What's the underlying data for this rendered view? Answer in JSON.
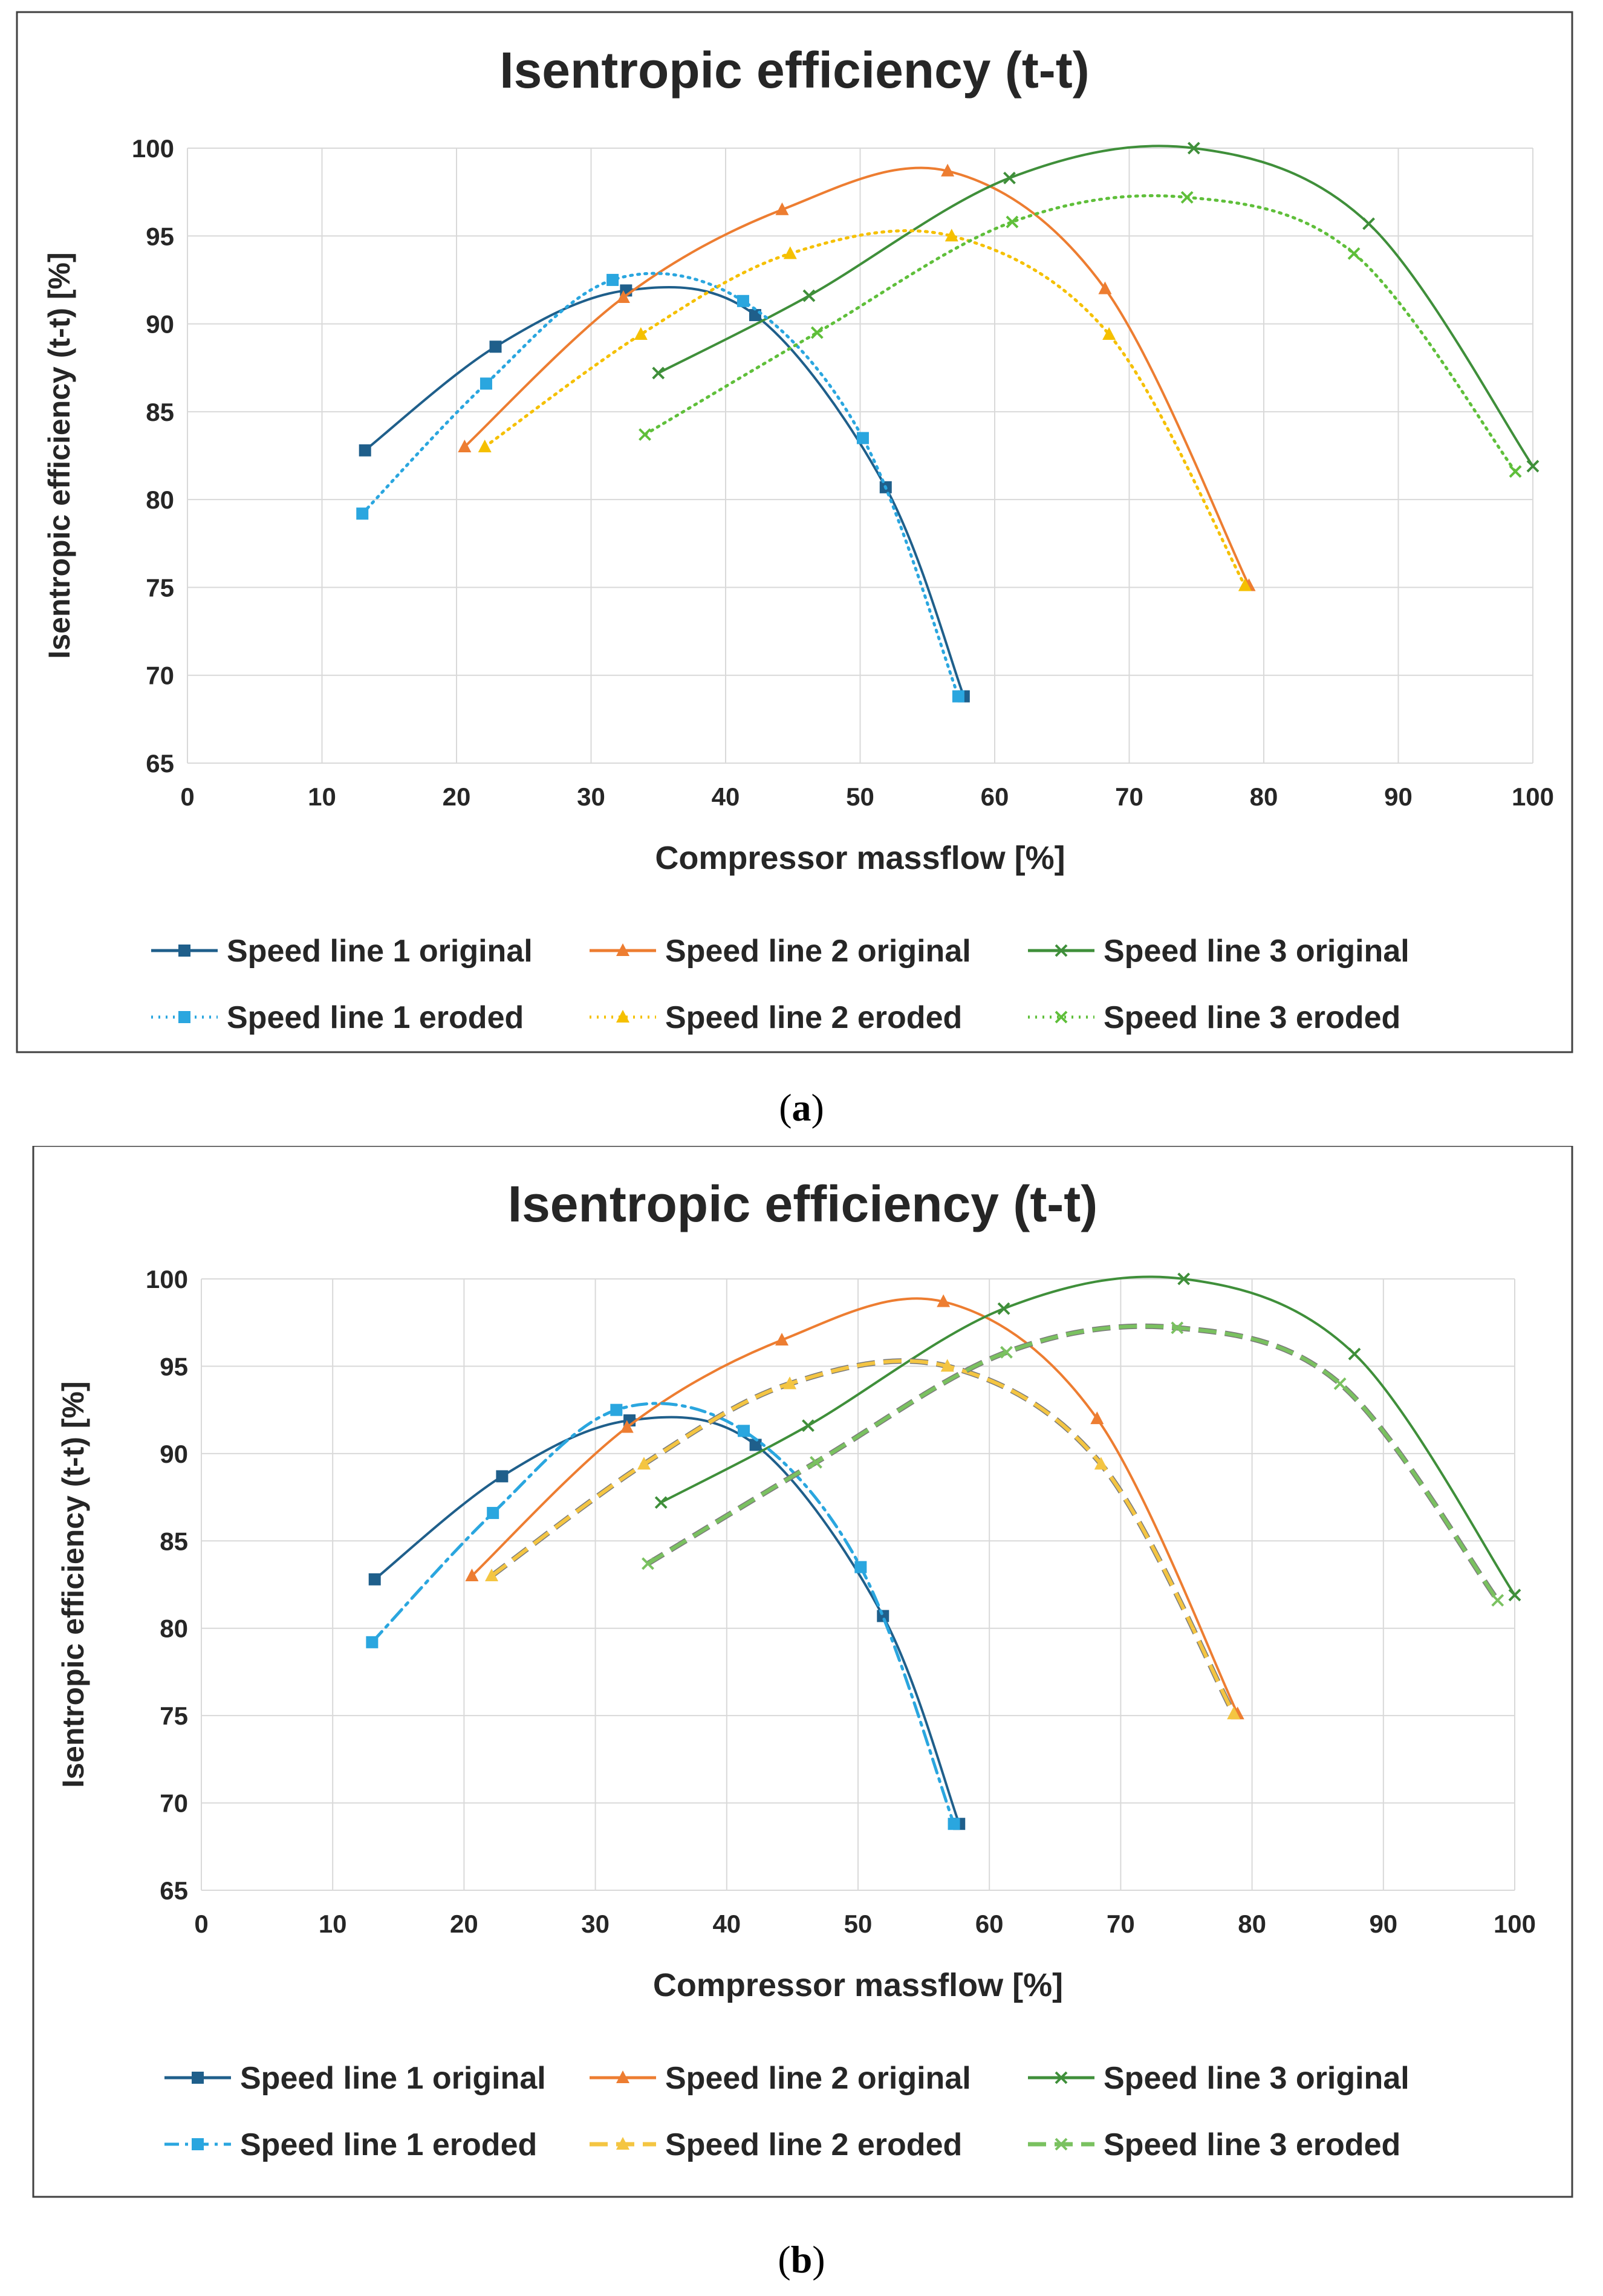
{
  "captions": {
    "a_open": "(",
    "a_letter": "a",
    "a_close": ")",
    "b_open": "(",
    "b_letter": "b",
    "b_close": ")"
  },
  "colors": {
    "sl1": "#1f5f8b",
    "sl1e": "#2aa6df",
    "sl2": "#ed7d31",
    "sl2e": "#f5c000",
    "sl2e_b": "#f4c542",
    "sl3": "#3f8f3a",
    "sl3e": "#5fbf3a",
    "sl3e_b": "#7ac160",
    "grid": "#d9d9d9",
    "frame": "#404040"
  },
  "chart_data": [
    {
      "type": "line",
      "panel": "a",
      "title": "Isentropic efficiency (t-t)",
      "xlabel": "Compressor massflow [%]",
      "ylabel": "Isentropic efficiency (t-t) [%]",
      "xlim": [
        0,
        100
      ],
      "ylim": [
        65,
        100
      ],
      "xticks": [
        "0",
        "10",
        "20",
        "30",
        "40",
        "50",
        "60",
        "70",
        "80",
        "90",
        "100"
      ],
      "yticks": [
        "65",
        "70",
        "75",
        "80",
        "85",
        "90",
        "95",
        "100"
      ],
      "grid": true,
      "legend": "bottom",
      "series": [
        {
          "key": "s1o",
          "name": "Speed line 1 original",
          "marker": "square",
          "dash": "solid",
          "x": [
            13.2,
            22.9,
            32.6,
            42.2,
            51.9,
            57.7
          ],
          "y": [
            82.8,
            88.7,
            91.9,
            90.5,
            80.7,
            68.8
          ]
        },
        {
          "key": "s2o",
          "name": "Speed line 2 original",
          "marker": "triangle",
          "dash": "solid",
          "x": [
            20.6,
            32.4,
            44.2,
            56.5,
            68.2,
            78.9
          ],
          "y": [
            83.0,
            91.5,
            96.5,
            98.7,
            92.0,
            75.1
          ]
        },
        {
          "key": "s3o",
          "name": "Speed line 3 original",
          "marker": "x",
          "dash": "solid",
          "x": [
            35.0,
            46.2,
            61.1,
            74.8,
            87.8,
            100.0
          ],
          "y": [
            87.2,
            91.6,
            98.3,
            100.0,
            95.7,
            81.9
          ]
        },
        {
          "key": "s1e",
          "name": "Speed line 1 eroded",
          "marker": "square",
          "dash": "dotted",
          "x": [
            13.0,
            22.2,
            31.6,
            41.3,
            50.2,
            57.3
          ],
          "y": [
            79.2,
            86.6,
            92.5,
            91.3,
            83.5,
            68.8
          ]
        },
        {
          "key": "s2e",
          "name": "Speed line 2 eroded",
          "marker": "triangle",
          "dash": "dotted",
          "x": [
            22.1,
            33.7,
            44.8,
            56.8,
            68.5,
            78.6
          ],
          "y": [
            83.0,
            89.4,
            94.0,
            95.0,
            89.4,
            75.1
          ]
        },
        {
          "key": "s3e",
          "name": "Speed line 3 eroded",
          "marker": "x",
          "dash": "dotted",
          "x": [
            34.0,
            46.8,
            61.3,
            74.3,
            86.7,
            98.7
          ],
          "y": [
            83.7,
            89.5,
            95.8,
            97.2,
            94.0,
            81.6
          ]
        }
      ]
    },
    {
      "type": "line",
      "panel": "b",
      "title": "Isentropic efficiency (t-t)",
      "xlabel": "Compressor massflow [%]",
      "ylabel": "Isentropic efficiency (t-t) [%]",
      "xlim": [
        0,
        100
      ],
      "ylim": [
        65,
        100
      ],
      "xticks": [
        "0",
        "10",
        "20",
        "30",
        "40",
        "50",
        "60",
        "70",
        "80",
        "90",
        "100"
      ],
      "yticks": [
        "65",
        "70",
        "75",
        "80",
        "85",
        "90",
        "95",
        "100"
      ],
      "grid": true,
      "legend": "bottom",
      "series": [
        {
          "key": "s1o",
          "name": "Speed line 1 original",
          "marker": "square",
          "dash": "solid",
          "x": [
            13.2,
            22.9,
            32.6,
            42.2,
            51.9,
            57.7
          ],
          "y": [
            82.8,
            88.7,
            91.9,
            90.5,
            80.7,
            68.8
          ]
        },
        {
          "key": "s2o",
          "name": "Speed line 2 original",
          "marker": "triangle",
          "dash": "solid",
          "x": [
            20.6,
            32.4,
            44.2,
            56.5,
            68.2,
            78.9
          ],
          "y": [
            83.0,
            91.5,
            96.5,
            98.7,
            92.0,
            75.1
          ]
        },
        {
          "key": "s3o",
          "name": "Speed line 3 original",
          "marker": "x",
          "dash": "solid",
          "x": [
            35.0,
            46.2,
            61.1,
            74.8,
            87.8,
            100.0
          ],
          "y": [
            87.2,
            91.6,
            98.3,
            100.0,
            95.7,
            81.9
          ]
        },
        {
          "key": "s1e",
          "name": "Speed line 1 eroded",
          "marker": "square",
          "dash": "dashdot",
          "x": [
            13.0,
            22.2,
            31.6,
            41.3,
            50.2,
            57.3
          ],
          "y": [
            79.2,
            86.6,
            92.5,
            91.3,
            83.5,
            68.8
          ]
        },
        {
          "key": "s2e",
          "name": "Speed line 2 eroded",
          "marker": "triangle",
          "dash": "longdash",
          "x": [
            22.1,
            33.7,
            44.8,
            56.8,
            68.5,
            78.6
          ],
          "y": [
            83.0,
            89.4,
            94.0,
            95.0,
            89.4,
            75.1
          ]
        },
        {
          "key": "s3e",
          "name": "Speed line 3 eroded",
          "marker": "x",
          "dash": "longdash",
          "x": [
            34.0,
            46.8,
            61.3,
            74.3,
            86.7,
            98.7
          ],
          "y": [
            83.7,
            89.5,
            95.8,
            97.2,
            94.0,
            81.6
          ]
        }
      ]
    }
  ]
}
